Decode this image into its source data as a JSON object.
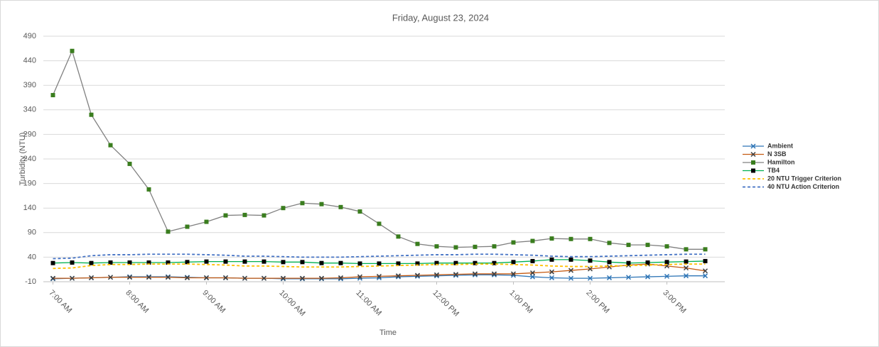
{
  "chart_data": {
    "type": "line",
    "title": "Friday, August 23, 2024",
    "x_label": "Time",
    "y_label": "Turbidity (NTU)",
    "categories": [
      "7:00 AM",
      null,
      null,
      null,
      "8:00 AM",
      null,
      null,
      null,
      "9:00 AM",
      null,
      null,
      null,
      "10:00 AM",
      null,
      null,
      null,
      "11:00 AM",
      null,
      null,
      null,
      "12:00 PM",
      null,
      null,
      null,
      "1:00 PM",
      null,
      null,
      null,
      "2:00 PM",
      null,
      null,
      null,
      "3:00 PM",
      null,
      null
    ],
    "ylim": [
      -10,
      490
    ],
    "yticks": [
      -10,
      40,
      90,
      140,
      190,
      240,
      290,
      340,
      390,
      440,
      490
    ],
    "grid": true,
    "legend": "right",
    "series": [
      {
        "name": "Ambient",
        "color": "#2e75b6",
        "marker": "x",
        "marker_color": "#2e75b6",
        "dash": false,
        "values": [
          -4,
          -3,
          -2,
          -1,
          0,
          0,
          0,
          -1,
          -2,
          -2,
          -3,
          -3,
          -4,
          -4,
          -4,
          -4,
          -3,
          -2,
          0,
          1,
          2,
          3,
          4,
          4,
          3,
          0,
          -2,
          -3,
          -3,
          -2,
          -1,
          0,
          1,
          2,
          2
        ]
      },
      {
        "name": "N 3SB",
        "color": "#c55a11",
        "marker": "x",
        "marker_color": "#404040",
        "dash": false,
        "values": [
          -3,
          -3,
          -2,
          -1,
          -1,
          -1,
          -1,
          -2,
          -2,
          -2,
          -3,
          -3,
          -3,
          -3,
          -3,
          -2,
          0,
          1,
          2,
          3,
          4,
          5,
          6,
          6,
          6,
          8,
          10,
          13,
          16,
          20,
          24,
          26,
          22,
          18,
          12
        ]
      },
      {
        "name": "Hamilton",
        "color": "#808080",
        "marker": "square",
        "marker_color": "#3a7d1e",
        "dash": false,
        "values": [
          370,
          460,
          330,
          268,
          230,
          178,
          92,
          102,
          112,
          125,
          126,
          125,
          140,
          150,
          148,
          142,
          133,
          108,
          82,
          67,
          62,
          60,
          61,
          62,
          70,
          73,
          78,
          77,
          77,
          69,
          65,
          65,
          62,
          56,
          56
        ]
      },
      {
        "name": "TB4",
        "color": "#00b050",
        "marker": "square",
        "marker_color": "#000000",
        "dash": false,
        "values": [
          28,
          29,
          28,
          29,
          29,
          29,
          29,
          30,
          31,
          31,
          31,
          31,
          30,
          30,
          28,
          28,
          27,
          27,
          27,
          27,
          28,
          28,
          28,
          28,
          30,
          32,
          35,
          35,
          33,
          30,
          28,
          29,
          30,
          31,
          32
        ]
      },
      {
        "name": "20 NTU Trigger Criterion",
        "color": "#ffc000",
        "marker": "none",
        "dash": true,
        "values": [
          17,
          18,
          23,
          25,
          25,
          26,
          26,
          26,
          25,
          24,
          22,
          22,
          21,
          20,
          20,
          20,
          21,
          22,
          23,
          24,
          25,
          25,
          26,
          26,
          25,
          24,
          22,
          21,
          21,
          22,
          23,
          24,
          25,
          26,
          26
        ]
      },
      {
        "name": "40 NTU Action Criterion",
        "color": "#4472c4",
        "marker": "none",
        "dash": true,
        "values": [
          37,
          38,
          43,
          45,
          45,
          46,
          46,
          46,
          45,
          44,
          42,
          42,
          41,
          40,
          40,
          40,
          41,
          42,
          43,
          44,
          45,
          45,
          46,
          46,
          45,
          44,
          42,
          41,
          41,
          42,
          43,
          44,
          45,
          46,
          46
        ]
      }
    ]
  }
}
